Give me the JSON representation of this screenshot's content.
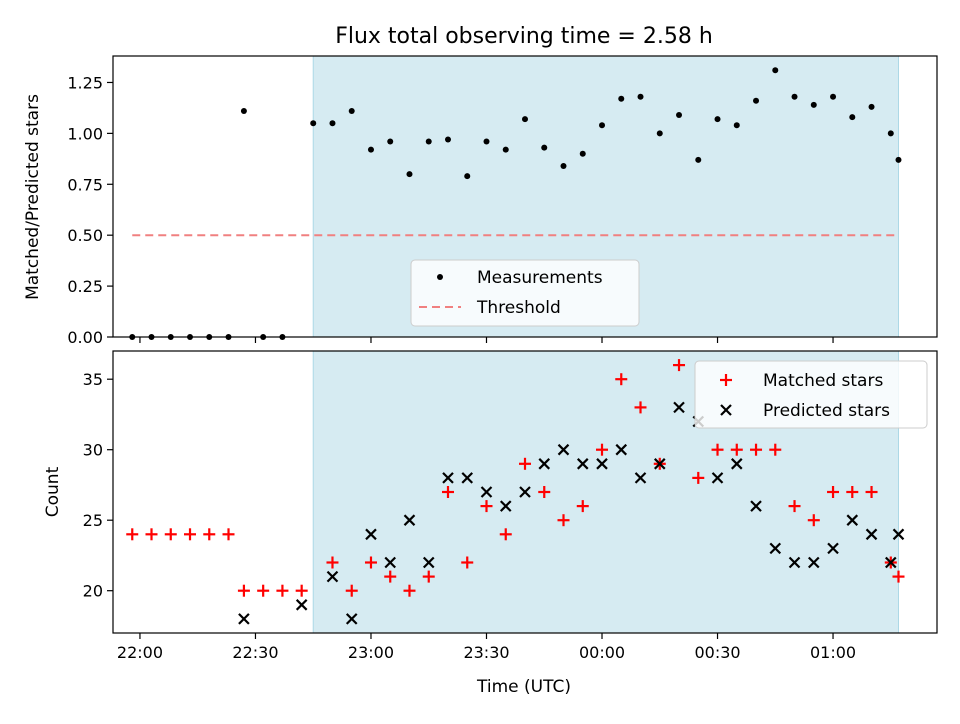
{
  "chart_data": {
    "title": "Flux total observing time = 2.58 h",
    "xlabel": "Time (UTC)",
    "x_tick_labels": [
      "22:00",
      "22:30",
      "23:00",
      "23:30",
      "00:00",
      "00:30",
      "01:00"
    ],
    "x_tick_times": [
      "22:00",
      "22:30",
      "23:00",
      "23:30",
      "24:00",
      "24:30",
      "25:00"
    ],
    "x_range": [
      "21:53",
      "25:27"
    ],
    "highlight_span": [
      "22:45",
      "25:17"
    ],
    "highlight_color": "#add8e6",
    "top": {
      "type": "scatter",
      "ylabel": "Matched/Predicted stars",
      "ylim": [
        0,
        1.38
      ],
      "y_ticks": [
        "0.00",
        "0.25",
        "0.50",
        "0.75",
        "1.00",
        "1.25"
      ],
      "threshold": {
        "value": 0.5,
        "x_range": [
          "21:58",
          "25:17"
        ],
        "color": "#f08080"
      },
      "legend": {
        "position": "lower-center",
        "entries": [
          "Measurements",
          "Threshold"
        ]
      },
      "points": [
        [
          "21:58",
          0
        ],
        [
          "22:03",
          0
        ],
        [
          "22:08",
          0
        ],
        [
          "22:13",
          0
        ],
        [
          "22:18",
          0
        ],
        [
          "22:23",
          0
        ],
        [
          "22:27",
          1.11
        ],
        [
          "22:32",
          0
        ],
        [
          "22:37",
          0
        ],
        [
          "22:45",
          1.05
        ],
        [
          "22:50",
          1.05
        ],
        [
          "22:55",
          1.11
        ],
        [
          "23:00",
          0.92
        ],
        [
          "23:05",
          0.96
        ],
        [
          "23:10",
          0.8
        ],
        [
          "23:15",
          0.96
        ],
        [
          "23:20",
          0.97
        ],
        [
          "23:25",
          0.79
        ],
        [
          "23:30",
          0.96
        ],
        [
          "23:35",
          0.92
        ],
        [
          "23:40",
          1.07
        ],
        [
          "23:45",
          0.93
        ],
        [
          "23:50",
          0.84
        ],
        [
          "23:55",
          0.9
        ],
        [
          "24:00",
          1.04
        ],
        [
          "24:05",
          1.17
        ],
        [
          "24:10",
          1.18
        ],
        [
          "24:15",
          1.0
        ],
        [
          "24:20",
          1.09
        ],
        [
          "24:25",
          0.87
        ],
        [
          "24:30",
          1.07
        ],
        [
          "24:35",
          1.04
        ],
        [
          "24:40",
          1.16
        ],
        [
          "24:45",
          1.31
        ],
        [
          "24:50",
          1.18
        ],
        [
          "24:55",
          1.14
        ],
        [
          "25:00",
          1.18
        ],
        [
          "25:05",
          1.08
        ],
        [
          "25:10",
          1.13
        ],
        [
          "25:15",
          1.0
        ],
        [
          "25:17",
          0.87
        ]
      ]
    },
    "bottom": {
      "type": "scatter",
      "ylabel": "Count",
      "ylim": [
        17,
        37
      ],
      "y_ticks": [
        "20",
        "25",
        "30",
        "35"
      ],
      "legend": {
        "position": "upper-right",
        "entries": [
          "Matched stars",
          "Predicted stars"
        ]
      },
      "matched_color": "#ff0000",
      "predicted_color": "#000000",
      "matched": [
        [
          "21:58",
          24
        ],
        [
          "22:03",
          24
        ],
        [
          "22:08",
          24
        ],
        [
          "22:13",
          24
        ],
        [
          "22:18",
          24
        ],
        [
          "22:23",
          24
        ],
        [
          "22:27",
          20
        ],
        [
          "22:32",
          20
        ],
        [
          "22:37",
          20
        ],
        [
          "22:42",
          20
        ],
        [
          "22:50",
          22
        ],
        [
          "22:55",
          20
        ],
        [
          "23:00",
          22
        ],
        [
          "23:05",
          21
        ],
        [
          "23:10",
          20
        ],
        [
          "23:15",
          21
        ],
        [
          "23:20",
          27
        ],
        [
          "23:25",
          22
        ],
        [
          "23:30",
          26
        ],
        [
          "23:35",
          24
        ],
        [
          "23:40",
          29
        ],
        [
          "23:45",
          27
        ],
        [
          "23:50",
          25
        ],
        [
          "23:55",
          26
        ],
        [
          "24:00",
          30
        ],
        [
          "24:05",
          35
        ],
        [
          "24:10",
          33
        ],
        [
          "24:15",
          29
        ],
        [
          "24:20",
          36
        ],
        [
          "24:25",
          28
        ],
        [
          "24:30",
          30
        ],
        [
          "24:35",
          30
        ],
        [
          "24:40",
          30
        ],
        [
          "24:45",
          30
        ],
        [
          "24:50",
          26
        ],
        [
          "24:55",
          25
        ],
        [
          "25:00",
          27
        ],
        [
          "25:05",
          27
        ],
        [
          "25:10",
          27
        ],
        [
          "25:15",
          22
        ],
        [
          "25:17",
          21
        ]
      ],
      "predicted": [
        [
          "22:27",
          18
        ],
        [
          "22:42",
          19
        ],
        [
          "22:50",
          21
        ],
        [
          "22:55",
          18
        ],
        [
          "23:00",
          24
        ],
        [
          "23:05",
          22
        ],
        [
          "23:10",
          25
        ],
        [
          "23:15",
          22
        ],
        [
          "23:20",
          28
        ],
        [
          "23:25",
          28
        ],
        [
          "23:30",
          27
        ],
        [
          "23:35",
          26
        ],
        [
          "23:40",
          27
        ],
        [
          "23:45",
          29
        ],
        [
          "23:50",
          30
        ],
        [
          "23:55",
          29
        ],
        [
          "24:00",
          29
        ],
        [
          "24:05",
          30
        ],
        [
          "24:10",
          28
        ],
        [
          "24:15",
          29
        ],
        [
          "24:20",
          33
        ],
        [
          "24:25",
          32
        ],
        [
          "24:30",
          28
        ],
        [
          "24:35",
          29
        ],
        [
          "24:40",
          26
        ],
        [
          "24:45",
          23
        ],
        [
          "24:50",
          22
        ],
        [
          "24:55",
          22
        ],
        [
          "25:00",
          23
        ],
        [
          "25:05",
          25
        ],
        [
          "25:10",
          24
        ],
        [
          "25:15",
          22
        ],
        [
          "25:17",
          24
        ]
      ]
    }
  }
}
